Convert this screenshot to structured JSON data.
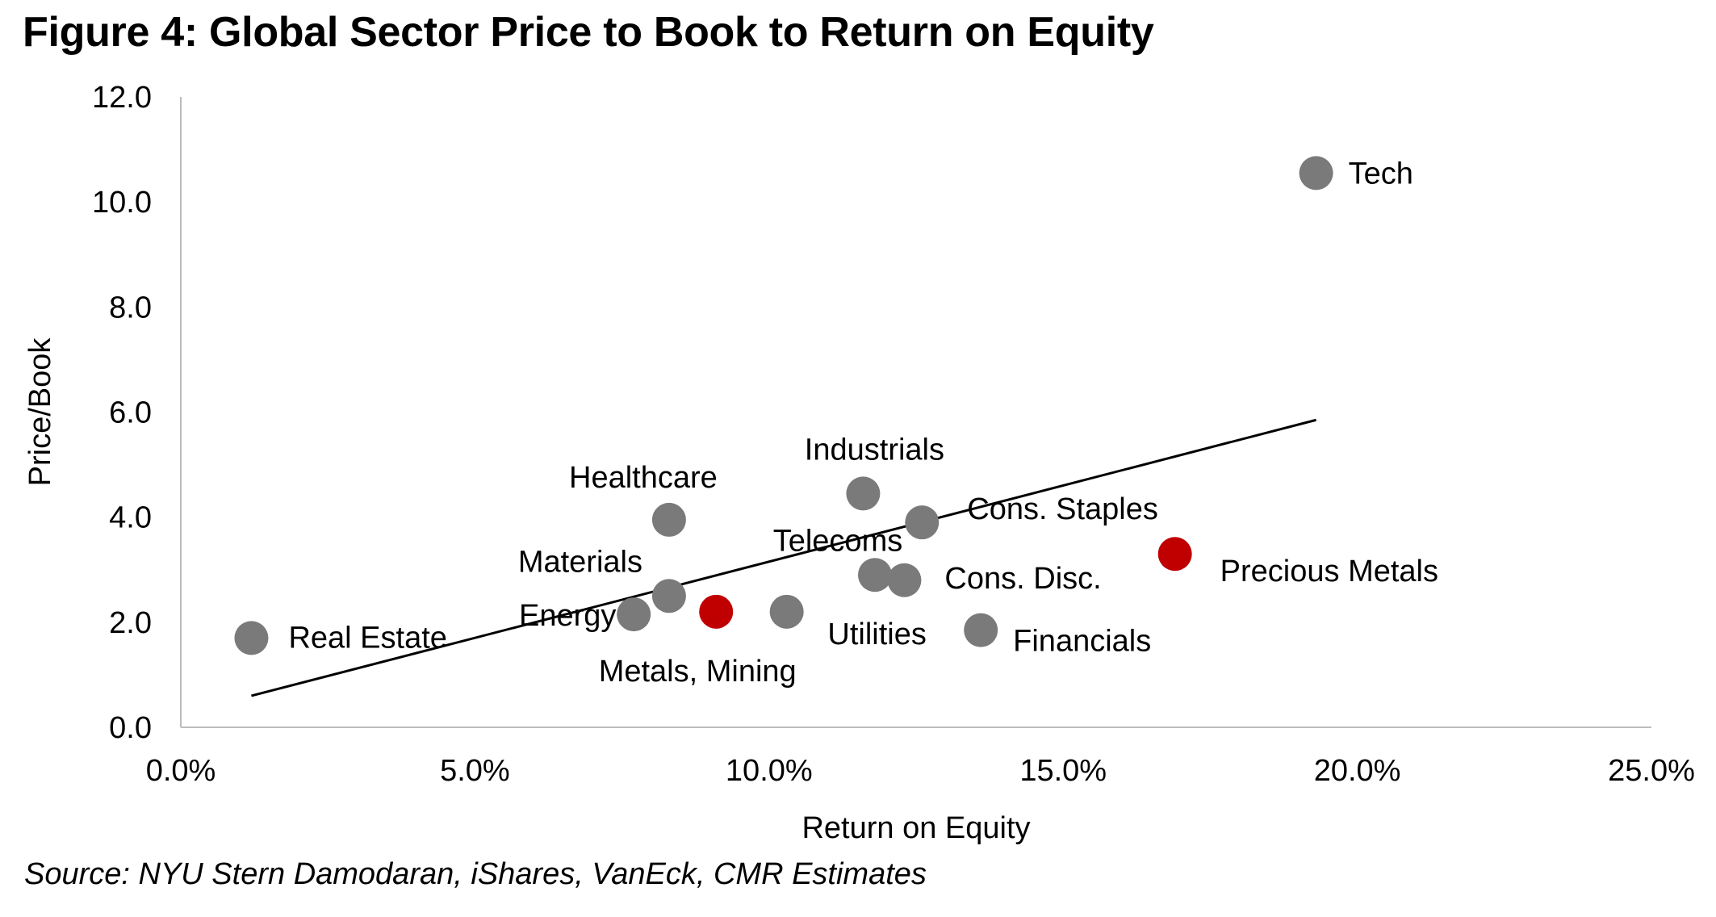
{
  "figure": {
    "title": "Figure 4: Global Sector Price to Book to Return on Equity",
    "source": "Source: NYU Stern Damodaran, iShares, VanEck, CMR Estimates"
  },
  "chart_data": {
    "type": "scatter",
    "title": "Figure 4: Global Sector Price to Book to Return on Equity",
    "xlabel": "Return on Equity",
    "ylabel": "Price/Book",
    "xlim": [
      0,
      25
    ],
    "ylim": [
      0,
      12
    ],
    "x_ticks": [
      0,
      5,
      10,
      15,
      20,
      25
    ],
    "x_tick_labels": [
      "0.0%",
      "5.0%",
      "10.0%",
      "15.0%",
      "20.0%",
      "25.0%"
    ],
    "y_ticks": [
      0,
      2,
      4,
      6,
      8,
      10,
      12
    ],
    "y_tick_labels": [
      "0.0",
      "2.0",
      "4.0",
      "6.0",
      "8.0",
      "10.0",
      "12.0"
    ],
    "grid": false,
    "legend": "none",
    "colors": {
      "default": "#7a7a7a",
      "highlight": "#c00000",
      "trendline": "#000000"
    },
    "points": [
      {
        "label": "Tech",
        "x": 19.3,
        "y": 10.55,
        "color": "#7a7a7a"
      },
      {
        "label": "Industrials",
        "x": 11.6,
        "y": 4.45,
        "color": "#7a7a7a"
      },
      {
        "label": "Healthcare",
        "x": 8.3,
        "y": 3.95,
        "color": "#7a7a7a"
      },
      {
        "label": "Cons. Staples",
        "x": 12.6,
        "y": 3.9,
        "color": "#7a7a7a"
      },
      {
        "label": "Precious Metals",
        "x": 16.9,
        "y": 3.3,
        "color": "#c00000"
      },
      {
        "label": "Telecoms",
        "x": 11.8,
        "y": 2.9,
        "color": "#7a7a7a"
      },
      {
        "label": "Cons. Disc.",
        "x": 12.3,
        "y": 2.8,
        "color": "#7a7a7a"
      },
      {
        "label": "Materials",
        "x": 8.3,
        "y": 2.5,
        "color": "#7a7a7a"
      },
      {
        "label": "Energy",
        "x": 7.7,
        "y": 2.15,
        "color": "#7a7a7a"
      },
      {
        "label": "Metals, Mining",
        "x": 9.1,
        "y": 2.2,
        "color": "#c00000"
      },
      {
        "label": "Utilities",
        "x": 10.3,
        "y": 2.2,
        "color": "#7a7a7a"
      },
      {
        "label": "Financials",
        "x": 13.6,
        "y": 1.85,
        "color": "#7a7a7a"
      },
      {
        "label": "Real Estate",
        "x": 1.2,
        "y": 1.7,
        "color": "#7a7a7a"
      }
    ],
    "trendline": {
      "x": [
        1.2,
        19.3
      ],
      "y": [
        0.6,
        5.85
      ]
    }
  }
}
